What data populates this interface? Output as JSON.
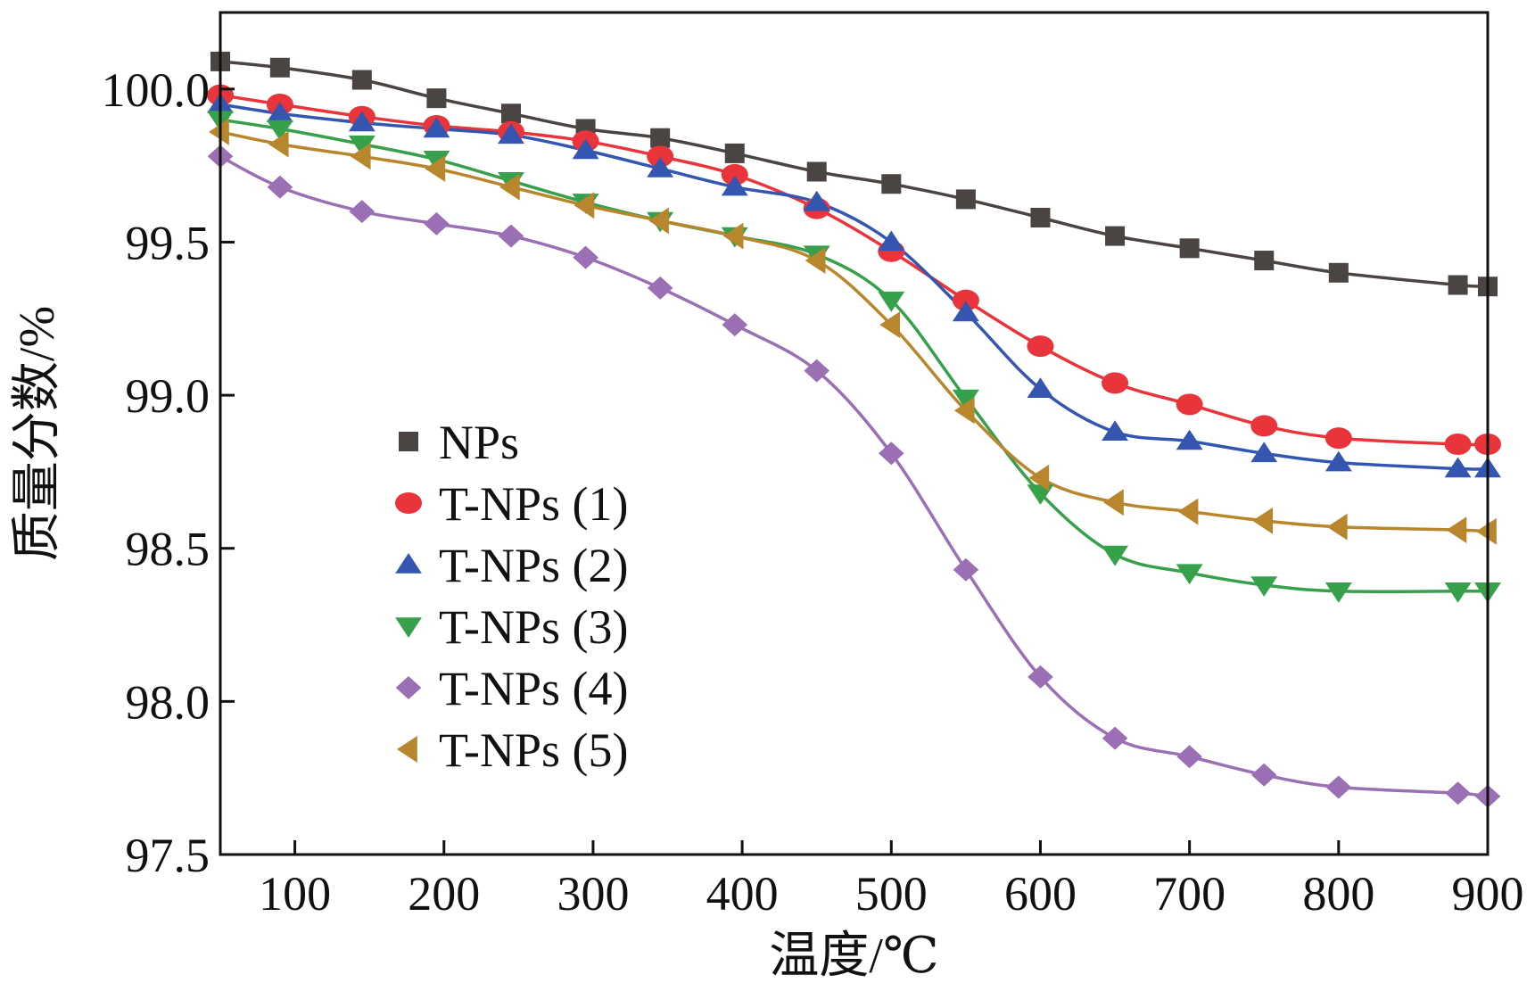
{
  "chart_data": {
    "type": "line",
    "title": "",
    "xlabel": "温度/℃",
    "ylabel": "质量分数/%",
    "xlim": [
      50,
      900
    ],
    "ylim": [
      97.5,
      100.25
    ],
    "xticks": [
      100,
      200,
      300,
      400,
      500,
      600,
      700,
      800,
      900
    ],
    "xtick_labels": [
      "100",
      "200",
      "300",
      "400",
      "500",
      "600",
      "700",
      "800",
      "900"
    ],
    "yticks": [
      97.5,
      98.0,
      98.5,
      99.0,
      99.5,
      100.0
    ],
    "ytick_labels": [
      "97.5",
      "98.0",
      "98.5",
      "99.0",
      "99.5",
      "100.0"
    ],
    "grid": false,
    "legend_position": "center-left",
    "series": [
      {
        "name": "NPs",
        "color": "#4a4542",
        "marker": "square",
        "x": [
          50,
          90,
          145,
          195,
          245,
          295,
          345,
          395,
          450,
          500,
          550,
          600,
          650,
          700,
          750,
          800,
          880,
          900
        ],
        "y": [
          100.09,
          100.07,
          100.03,
          99.97,
          99.92,
          99.87,
          99.84,
          99.79,
          99.73,
          99.69,
          99.64,
          99.58,
          99.52,
          99.48,
          99.44,
          99.4,
          99.36,
          99.355
        ]
      },
      {
        "name": "T-NPs (1)",
        "color": "#e8343a",
        "marker": "circle",
        "x": [
          50,
          90,
          145,
          195,
          245,
          295,
          345,
          395,
          450,
          500,
          550,
          600,
          650,
          700,
          750,
          800,
          880,
          900
        ],
        "y": [
          99.98,
          99.95,
          99.91,
          99.88,
          99.86,
          99.83,
          99.78,
          99.72,
          99.61,
          99.47,
          99.31,
          99.16,
          99.04,
          98.97,
          98.9,
          98.86,
          98.84,
          98.84
        ]
      },
      {
        "name": "T-NPs (2)",
        "color": "#3556b0",
        "marker": "triangle-up",
        "x": [
          50,
          90,
          145,
          195,
          245,
          295,
          345,
          395,
          450,
          500,
          550,
          600,
          650,
          700,
          750,
          800,
          880,
          900
        ],
        "y": [
          99.95,
          99.92,
          99.89,
          99.87,
          99.85,
          99.8,
          99.74,
          99.68,
          99.63,
          99.5,
          99.27,
          99.02,
          98.88,
          98.85,
          98.81,
          98.78,
          98.76,
          98.76
        ]
      },
      {
        "name": "T-NPs (3)",
        "color": "#36a04a",
        "marker": "triangle-down",
        "x": [
          50,
          90,
          145,
          195,
          245,
          295,
          345,
          395,
          450,
          500,
          550,
          600,
          650,
          700,
          750,
          800,
          880,
          900
        ],
        "y": [
          99.9,
          99.87,
          99.82,
          99.77,
          99.7,
          99.63,
          99.57,
          99.52,
          99.46,
          99.31,
          98.99,
          98.68,
          98.48,
          98.42,
          98.38,
          98.36,
          98.36,
          98.36
        ]
      },
      {
        "name": "T-NPs (4)",
        "color": "#9a6fb4",
        "marker": "diamond",
        "x": [
          50,
          90,
          145,
          195,
          245,
          295,
          345,
          395,
          450,
          500,
          550,
          600,
          650,
          700,
          750,
          800,
          880,
          900
        ],
        "y": [
          99.78,
          99.68,
          99.6,
          99.56,
          99.52,
          99.45,
          99.35,
          99.23,
          99.08,
          98.81,
          98.43,
          98.08,
          97.88,
          97.82,
          97.76,
          97.72,
          97.7,
          97.69
        ]
      },
      {
        "name": "T-NPs (5)",
        "color": "#b8862c",
        "marker": "triangle-left",
        "x": [
          50,
          90,
          145,
          195,
          245,
          295,
          345,
          395,
          450,
          500,
          550,
          600,
          650,
          700,
          750,
          800,
          880,
          900
        ],
        "y": [
          99.86,
          99.82,
          99.78,
          99.74,
          99.68,
          99.62,
          99.57,
          99.52,
          99.44,
          99.23,
          98.95,
          98.73,
          98.65,
          98.62,
          98.59,
          98.57,
          98.56,
          98.555
        ]
      }
    ]
  }
}
